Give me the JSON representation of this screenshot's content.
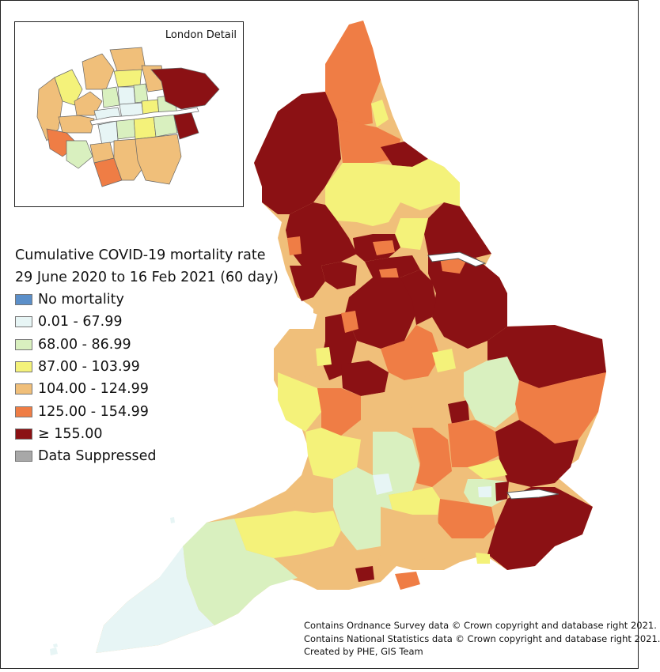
{
  "inset": {
    "title": "London Detail"
  },
  "legend": {
    "title_line1": "Cumulative COVID-19 mortality rate",
    "title_line2": "29 June 2020 to 16 Feb 2021 (60 day)",
    "items": [
      {
        "label": "No mortality",
        "color": "#5b8fc9"
      },
      {
        "label": "0.01 - 67.99",
        "color": "#e7f5f5"
      },
      {
        "label": "68.00 - 86.99",
        "color": "#d9f0bf"
      },
      {
        "label": "87.00 - 103.99",
        "color": "#f4f27a"
      },
      {
        "label": "104.00 - 124.99",
        "color": "#f0bf7a"
      },
      {
        "label": "125.00 - 154.99",
        "color": "#ef7d45"
      },
      {
        "label": "≥ 155.00",
        "color": "#8b1114"
      },
      {
        "label": "Data Suppressed",
        "color": "#a8a8a8"
      }
    ]
  },
  "credits": {
    "line1": "Contains Ordnance Survey data © Crown copyright and database right 2021.",
    "line2": "Contains National Statistics data © Crown copyright and database right 2021.",
    "line3": "Created by PHE, GIS Team"
  }
}
